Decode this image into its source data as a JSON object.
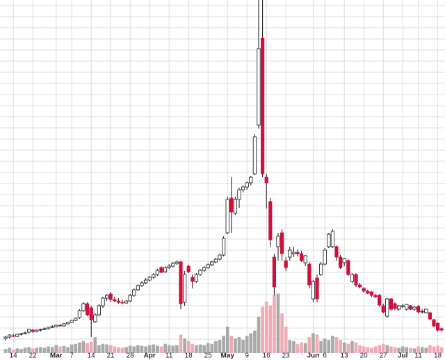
{
  "chart_data": {
    "type": "candlestick",
    "categories": [
      null,
      null,
      "14",
      null,
      null,
      null,
      null,
      "22",
      null,
      null,
      null,
      null,
      null,
      "Mar",
      null,
      null,
      null,
      "7",
      null,
      null,
      null,
      null,
      "14",
      null,
      null,
      null,
      null,
      "21",
      null,
      null,
      null,
      null,
      "28",
      null,
      null,
      null,
      null,
      "Apr",
      null,
      null,
      null,
      null,
      "11",
      null,
      null,
      null,
      null,
      "18",
      null,
      null,
      null,
      null,
      "25",
      null,
      null,
      null,
      null,
      "May",
      null,
      null,
      null,
      null,
      "9",
      null,
      null,
      null,
      null,
      "16",
      null,
      null,
      null,
      null,
      "23",
      null,
      null,
      null,
      null,
      null,
      null,
      "Jun",
      null,
      null,
      "6",
      null,
      null,
      null,
      null,
      "13",
      null,
      null,
      null,
      null,
      "20",
      null,
      null,
      null,
      null,
      "27",
      null,
      null,
      null,
      null,
      "Jul",
      null,
      null,
      null,
      "11",
      null,
      null,
      null,
      null,
      "18",
      null
    ],
    "ohlc": [
      [
        8,
        12,
        5,
        10
      ],
      [
        10,
        14,
        8,
        13
      ],
      [
        12,
        15,
        10,
        11
      ],
      [
        11,
        15,
        10,
        14
      ],
      [
        14,
        16,
        12,
        15
      ],
      [
        15,
        18,
        14,
        16
      ],
      [
        17,
        22,
        15,
        21
      ],
      [
        20,
        22,
        16,
        18
      ],
      [
        18,
        21,
        17,
        20
      ],
      [
        20,
        22,
        18,
        21
      ],
      [
        21,
        24,
        20,
        22
      ],
      [
        22,
        25,
        21,
        24
      ],
      [
        24,
        27,
        23,
        25
      ],
      [
        25,
        28,
        24,
        27
      ],
      [
        27,
        29,
        25,
        26
      ],
      [
        26,
        30,
        25,
        29
      ],
      [
        29,
        32,
        28,
        31
      ],
      [
        31,
        35,
        30,
        34
      ],
      [
        34,
        38,
        33,
        37
      ],
      [
        38,
        50,
        36,
        48
      ],
      [
        48,
        60,
        46,
        58
      ],
      [
        58,
        60,
        40,
        42
      ],
      [
        52,
        55,
        10,
        35
      ],
      [
        32,
        45,
        30,
        42
      ],
      [
        42,
        58,
        40,
        55
      ],
      [
        55,
        68,
        52,
        66
      ],
      [
        66,
        72,
        62,
        70
      ],
      [
        72,
        75,
        60,
        64
      ],
      [
        64,
        68,
        60,
        62
      ],
      [
        62,
        66,
        58,
        60
      ],
      [
        60,
        64,
        57,
        59
      ],
      [
        59,
        63,
        58,
        62
      ],
      [
        62,
        72,
        60,
        70
      ],
      [
        70,
        80,
        68,
        78
      ],
      [
        78,
        86,
        76,
        84
      ],
      [
        84,
        90,
        82,
        88
      ],
      [
        88,
        95,
        86,
        92
      ],
      [
        92,
        98,
        90,
        96
      ],
      [
        96,
        102,
        94,
        100
      ],
      [
        100,
        108,
        98,
        106
      ],
      [
        110,
        112,
        102,
        103
      ],
      [
        104,
        112,
        102,
        110
      ],
      [
        110,
        115,
        108,
        112
      ],
      [
        112,
        118,
        110,
        116
      ],
      [
        116,
        120,
        114,
        118
      ],
      [
        118,
        120,
        50,
        58
      ],
      [
        60,
        105,
        55,
        100
      ],
      [
        112,
        114,
        102,
        104
      ],
      [
        96,
        100,
        80,
        90
      ],
      [
        90,
        102,
        88,
        100
      ],
      [
        100,
        108,
        98,
        106
      ],
      [
        106,
        112,
        104,
        110
      ],
      [
        110,
        116,
        108,
        114
      ],
      [
        114,
        120,
        112,
        118
      ],
      [
        118,
        124,
        116,
        122
      ],
      [
        122,
        130,
        120,
        128
      ],
      [
        128,
        155,
        126,
        152
      ],
      [
        160,
        212,
        158,
        208
      ],
      [
        210,
        240,
        160,
        190
      ],
      [
        188,
        212,
        186,
        208
      ],
      [
        208,
        225,
        196,
        222
      ],
      [
        222,
        228,
        218,
        226
      ],
      [
        226,
        234,
        222,
        232
      ],
      [
        232,
        242,
        228,
        240
      ],
      [
        245,
        302,
        243,
        298
      ],
      [
        315,
        495,
        310,
        425
      ],
      [
        440,
        495,
        240,
        245
      ],
      [
        240,
        245,
        195,
        232
      ],
      [
        205,
        210,
        140,
        150
      ],
      [
        125,
        130,
        70,
        82
      ],
      [
        140,
        160,
        120,
        155
      ],
      [
        160,
        165,
        120,
        130
      ],
      [
        120,
        125,
        105,
        110
      ],
      [
        125,
        140,
        120,
        135
      ],
      [
        130,
        140,
        125,
        132
      ],
      [
        132,
        136,
        126,
        130
      ],
      [
        130,
        134,
        118,
        120
      ],
      [
        117,
        128,
        112,
        127
      ],
      [
        115,
        118,
        80,
        85
      ],
      [
        65,
        92,
        60,
        90
      ],
      [
        95,
        100,
        60,
        65
      ],
      [
        100,
        118,
        98,
        115
      ],
      [
        115,
        138,
        113,
        135
      ],
      [
        140,
        160,
        138,
        158
      ],
      [
        140,
        165,
        138,
        162
      ],
      [
        140,
        142,
        120,
        125
      ],
      [
        125,
        128,
        108,
        110
      ],
      [
        117,
        124,
        112,
        123
      ],
      [
        120,
        122,
        98,
        100
      ],
      [
        90,
        102,
        88,
        100
      ],
      [
        100,
        102,
        82,
        85
      ],
      [
        85,
        88,
        80,
        82
      ],
      [
        80,
        82,
        74,
        76
      ],
      [
        76,
        78,
        72,
        73
      ],
      [
        75,
        76,
        68,
        70
      ],
      [
        70,
        72,
        66,
        68
      ],
      [
        70,
        72,
        54,
        56
      ],
      [
        55,
        58,
        44,
        46
      ],
      [
        40,
        66,
        38,
        65
      ],
      [
        65,
        66,
        48,
        50
      ],
      [
        58,
        60,
        49,
        51
      ],
      [
        50,
        56,
        48,
        55
      ],
      [
        54,
        58,
        52,
        55
      ],
      [
        50,
        58,
        48,
        57
      ],
      [
        55,
        56,
        49,
        50
      ],
      [
        50,
        55,
        48,
        53
      ],
      [
        54,
        56,
        44,
        46
      ],
      [
        46,
        50,
        44,
        47
      ],
      [
        45,
        51,
        44,
        50
      ],
      [
        45,
        46,
        34,
        36
      ],
      [
        35,
        36,
        24,
        26
      ],
      [
        30,
        31,
        18,
        20
      ],
      [
        22,
        24,
        18,
        20
      ]
    ],
    "volume": [
      6,
      8,
      5,
      7,
      6,
      8,
      9,
      7,
      8,
      9,
      8,
      10,
      9,
      12,
      10,
      11,
      9,
      13,
      14,
      16,
      18,
      15,
      17,
      24,
      12,
      14,
      13,
      12,
      10,
      9,
      8,
      9,
      11,
      10,
      12,
      11,
      10,
      12,
      13,
      11,
      10,
      14,
      12,
      11,
      12,
      28,
      22,
      18,
      14,
      12,
      13,
      12,
      15,
      14,
      18,
      20,
      26,
      40,
      26,
      22,
      24,
      20,
      26,
      30,
      34,
      55,
      70,
      78,
      72,
      88,
      90,
      60,
      40,
      20,
      18,
      14,
      16,
      15,
      24,
      30,
      28,
      18,
      22,
      20,
      26,
      24,
      20,
      16,
      14,
      18,
      16,
      12,
      10,
      9,
      8,
      10,
      12,
      14,
      12,
      10,
      9,
      8,
      10,
      9,
      8,
      7,
      10,
      9,
      8,
      12,
      10,
      11,
      9
    ],
    "ylim": [
      0,
      495
    ],
    "volume_lim": [
      0,
      100
    ],
    "up_color": "#ffffff",
    "down_color": "#d0103a",
    "volume_up_color": "#a9a9a9",
    "volume_down_color": "#f0aab4",
    "grid": true
  }
}
